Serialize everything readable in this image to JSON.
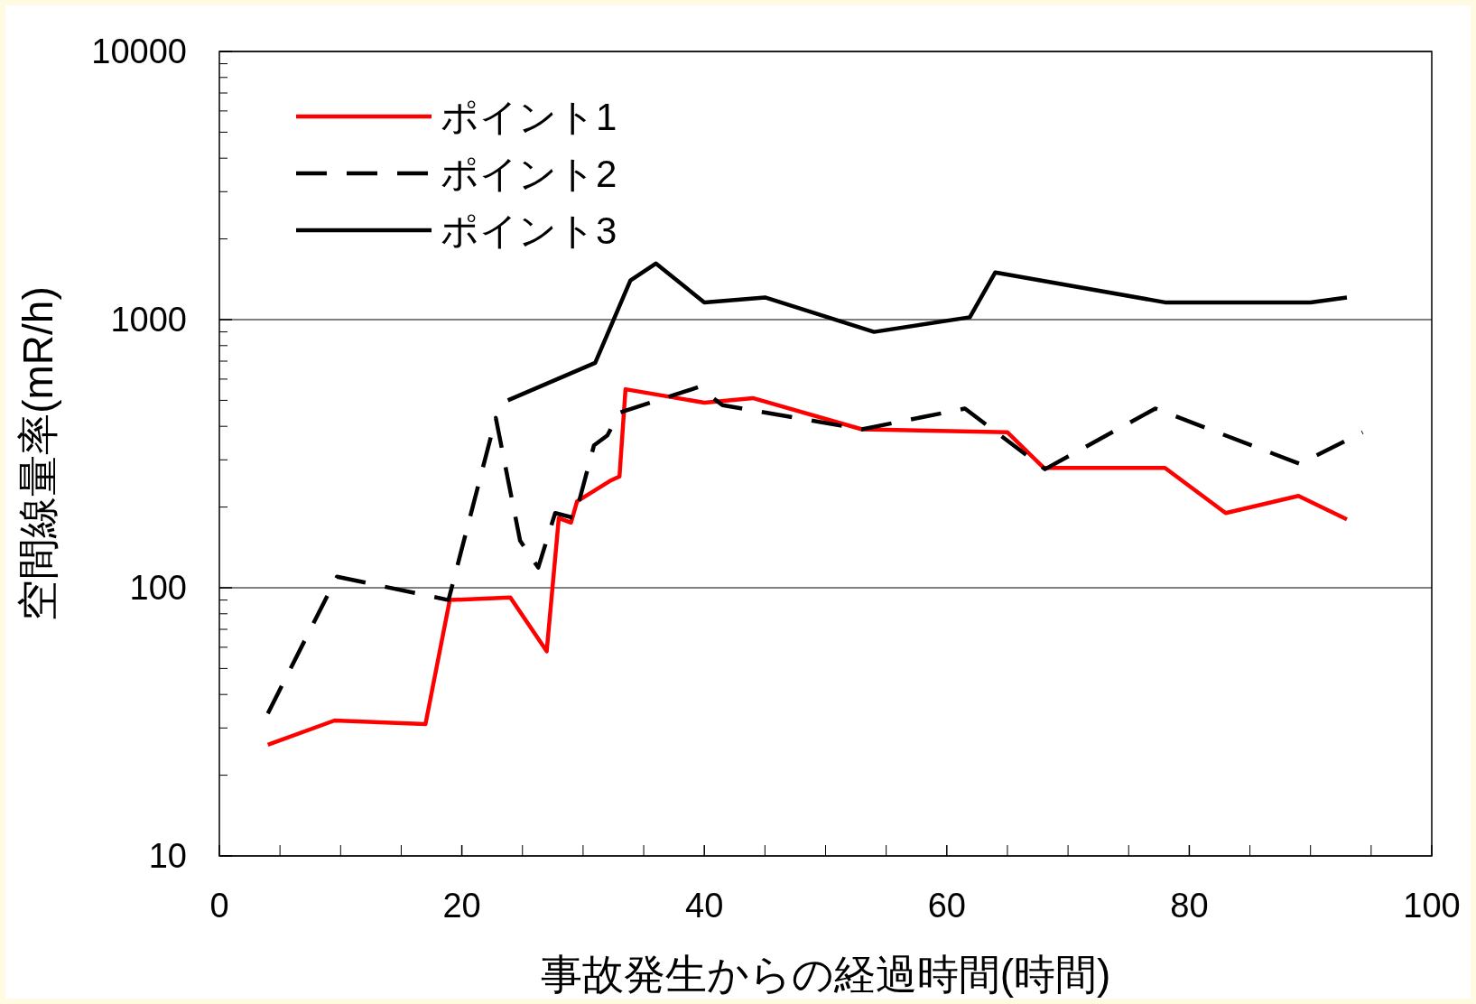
{
  "chart_data": {
    "type": "line",
    "xlabel": "事故発生からの経過時間(時間)",
    "ylabel": "空間線量率(mR/h)",
    "xlim": [
      0,
      100
    ],
    "xticks": [
      0,
      20,
      40,
      60,
      80,
      100
    ],
    "ylim": [
      10,
      10000
    ],
    "yticks": [
      10,
      100,
      1000,
      10000
    ],
    "log": "y",
    "grid": "y",
    "legend": "top left",
    "series": [
      {
        "name": "ポイント1",
        "color": "#ff0000",
        "line_style": "solid",
        "x": [
          4,
          9.5,
          17,
          19,
          24,
          27,
          28,
          29,
          29.5,
          32.2,
          33,
          33.5,
          40,
          44,
          53,
          65,
          68,
          78,
          83,
          89,
          93
        ],
        "values": [
          26,
          32,
          31,
          90,
          92,
          58,
          182,
          175,
          210,
          250,
          260,
          550,
          490,
          510,
          390,
          380,
          280,
          280,
          190,
          220,
          180
        ]
      },
      {
        "name": "ポイント2",
        "color": "#000000",
        "line_style": "dashed",
        "x": [
          4,
          9.7,
          18.9,
          22.8,
          24.8,
          26.3,
          27.7,
          29.3,
          30.9,
          32,
          33,
          39.5,
          41.5,
          53,
          61.5,
          68.1,
          77.2,
          89.1,
          94.3
        ],
        "values": [
          34,
          110,
          90,
          430,
          150,
          119,
          190,
          182,
          340,
          370,
          450,
          560,
          480,
          390,
          466,
          277,
          466,
          290,
          380
        ]
      },
      {
        "name": "ポイント3",
        "color": "#000000",
        "line_style": "solid",
        "x": [
          23.8,
          31,
          33.9,
          36,
          40,
          45,
          54,
          61.9,
          64,
          78,
          90,
          93
        ],
        "values": [
          500,
          690,
          1400,
          1620,
          1160,
          1210,
          900,
          1020,
          1500,
          1160,
          1160,
          1210
        ]
      }
    ]
  }
}
